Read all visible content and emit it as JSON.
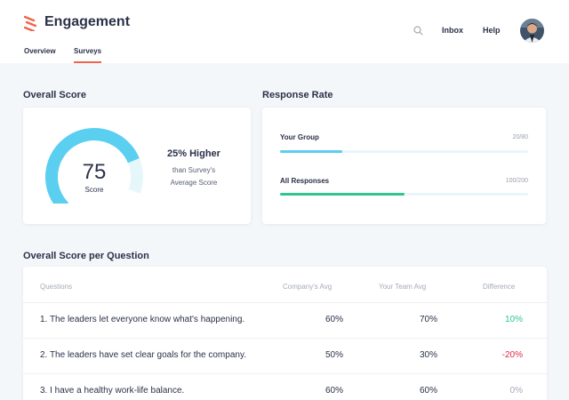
{
  "header": {
    "title": "Engagement",
    "tabs": [
      {
        "label": "Overview",
        "active": false
      },
      {
        "label": "Surveys",
        "active": true
      }
    ],
    "nav": {
      "inbox": "Inbox",
      "help": "Help"
    },
    "icons": {
      "logo": "brand-logo-icon",
      "search": "search-icon",
      "avatar": "user-avatar"
    }
  },
  "overall_score": {
    "title": "Overall Score",
    "score": "75",
    "score_label": "Score",
    "score_fraction": 0.75,
    "comparison_title": "25% Higher",
    "comparison_line1": "than Survey's",
    "comparison_line2": "Average Score"
  },
  "response_rate": {
    "title": "Response Rate",
    "items": [
      {
        "label": "Your Group",
        "count": "20/80",
        "fraction": 0.25,
        "color": "#5bcfef"
      },
      {
        "label": "All Responses",
        "count": "100/200",
        "fraction": 0.5,
        "color": "#2ec58e"
      }
    ]
  },
  "per_question": {
    "title": "Overall Score per Question",
    "columns": [
      "Questions",
      "Company's Avg",
      "Your Team Avg",
      "Difference"
    ],
    "rows": [
      {
        "question": "1. The leaders let everyone know what's happening.",
        "company": "60%",
        "team": "70%",
        "diff": "10%",
        "diff_color": "#2ec58e"
      },
      {
        "question": "2. The leaders have set clear goals for the company.",
        "company": "50%",
        "team": "30%",
        "diff": "-20%",
        "diff_color": "#e0294a"
      },
      {
        "question": "3. I have a healthy work-life balance.",
        "company": "60%",
        "team": "60%",
        "diff": "0%",
        "diff_color": "#a4aab7"
      }
    ]
  },
  "colors": {
    "accent": "#f0654a",
    "gauge": "#5bcfef",
    "gauge_track": "#e6f7fc",
    "text": "#2b3148"
  }
}
